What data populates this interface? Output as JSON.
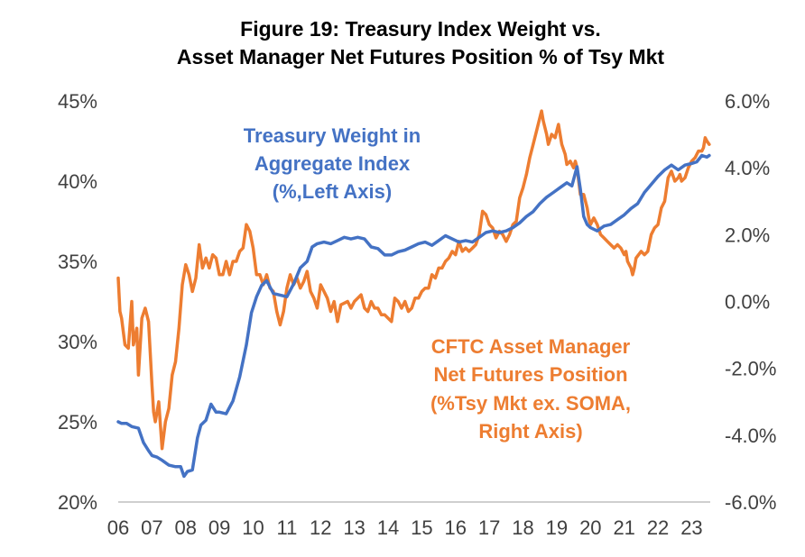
{
  "colors": {
    "treasury": "#4472C4",
    "cftc": "#ED7D31",
    "axis": "#BFBFBF",
    "tick_text": "#404040"
  },
  "chart_data": {
    "type": "line",
    "title": [
      "Figure 19: Treasury Index Weight vs.",
      "Asset Manager Net Futures Position % of Tsy Mkt"
    ],
    "x_range": [
      2006,
      2023.55
    ],
    "x_ticks": [
      "06",
      "07",
      "08",
      "09",
      "10",
      "11",
      "12",
      "13",
      "14",
      "15",
      "16",
      "17",
      "18",
      "19",
      "20",
      "21",
      "22",
      "23"
    ],
    "y_left": {
      "range": [
        20,
        45
      ],
      "ticks": [
        "20%",
        "25%",
        "30%",
        "35%",
        "40%",
        "45%"
      ]
    },
    "y_right": {
      "range": [
        -6,
        6
      ],
      "ticks": [
        "-6.0%",
        "-4.0%",
        "-2.0%",
        "0.0%",
        "2.0%",
        "4.0%",
        "6.0%"
      ]
    },
    "grid": false,
    "legend": "none",
    "annotations": [
      {
        "series": "treasury",
        "lines": [
          "Treasury Weight in",
          "Aggregate Index",
          "(%,Left Axis)"
        ]
      },
      {
        "series": "cftc",
        "lines": [
          "CFTC Asset Manager",
          "Net Futures Position",
          "(%Tsy Mkt ex. SOMA,",
          "Right Axis)"
        ]
      }
    ],
    "series": [
      {
        "id": "treasury",
        "axis": "left",
        "points": [
          [
            2006.0,
            25.0
          ],
          [
            2006.1,
            24.9
          ],
          [
            2006.25,
            24.9
          ],
          [
            2006.4,
            24.7
          ],
          [
            2006.6,
            24.6
          ],
          [
            2006.75,
            23.7
          ],
          [
            2006.9,
            23.2
          ],
          [
            2007.0,
            22.9
          ],
          [
            2007.15,
            22.8
          ],
          [
            2007.3,
            22.6
          ],
          [
            2007.5,
            22.3
          ],
          [
            2007.7,
            22.2
          ],
          [
            2007.85,
            22.2
          ],
          [
            2007.95,
            21.6
          ],
          [
            2008.05,
            21.9
          ],
          [
            2008.2,
            22.0
          ],
          [
            2008.35,
            24.0
          ],
          [
            2008.45,
            24.8
          ],
          [
            2008.6,
            25.1
          ],
          [
            2008.75,
            26.1
          ],
          [
            2008.9,
            25.6
          ],
          [
            2009.0,
            25.6
          ],
          [
            2009.2,
            25.5
          ],
          [
            2009.4,
            26.3
          ],
          [
            2009.6,
            27.8
          ],
          [
            2009.8,
            29.8
          ],
          [
            2009.95,
            31.8
          ],
          [
            2010.1,
            32.8
          ],
          [
            2010.25,
            33.5
          ],
          [
            2010.4,
            33.8
          ],
          [
            2010.6,
            33.0
          ],
          [
            2010.8,
            32.9
          ],
          [
            2011.0,
            32.8
          ],
          [
            2011.2,
            33.6
          ],
          [
            2011.4,
            34.6
          ],
          [
            2011.6,
            35.0
          ],
          [
            2011.75,
            35.9
          ],
          [
            2011.9,
            36.1
          ],
          [
            2012.1,
            36.2
          ],
          [
            2012.3,
            36.1
          ],
          [
            2012.5,
            36.3
          ],
          [
            2012.7,
            36.5
          ],
          [
            2012.9,
            36.4
          ],
          [
            2013.1,
            36.5
          ],
          [
            2013.3,
            36.4
          ],
          [
            2013.5,
            35.9
          ],
          [
            2013.7,
            35.8
          ],
          [
            2013.9,
            35.4
          ],
          [
            2014.1,
            35.4
          ],
          [
            2014.3,
            35.6
          ],
          [
            2014.5,
            35.7
          ],
          [
            2014.7,
            35.9
          ],
          [
            2014.9,
            36.1
          ],
          [
            2015.1,
            36.2
          ],
          [
            2015.3,
            36.0
          ],
          [
            2015.5,
            36.3
          ],
          [
            2015.7,
            36.6
          ],
          [
            2015.9,
            36.4
          ],
          [
            2016.1,
            36.2
          ],
          [
            2016.3,
            36.3
          ],
          [
            2016.5,
            36.2
          ],
          [
            2016.7,
            36.5
          ],
          [
            2016.9,
            36.8
          ],
          [
            2017.1,
            36.9
          ],
          [
            2017.3,
            36.8
          ],
          [
            2017.5,
            36.9
          ],
          [
            2017.7,
            37.1
          ],
          [
            2017.9,
            37.4
          ],
          [
            2018.1,
            37.8
          ],
          [
            2018.3,
            38.1
          ],
          [
            2018.5,
            38.6
          ],
          [
            2018.7,
            39.0
          ],
          [
            2018.9,
            39.3
          ],
          [
            2019.1,
            39.6
          ],
          [
            2019.3,
            39.9
          ],
          [
            2019.45,
            39.7
          ],
          [
            2019.6,
            40.9
          ],
          [
            2019.7,
            39.5
          ],
          [
            2019.8,
            37.8
          ],
          [
            2019.9,
            37.3
          ],
          [
            2020.0,
            37.1
          ],
          [
            2020.2,
            36.9
          ],
          [
            2020.4,
            37.2
          ],
          [
            2020.6,
            37.3
          ],
          [
            2020.8,
            37.6
          ],
          [
            2021.0,
            37.9
          ],
          [
            2021.2,
            38.3
          ],
          [
            2021.4,
            38.6
          ],
          [
            2021.6,
            39.3
          ],
          [
            2021.8,
            39.8
          ],
          [
            2022.0,
            40.3
          ],
          [
            2022.2,
            40.7
          ],
          [
            2022.4,
            41.0
          ],
          [
            2022.6,
            40.7
          ],
          [
            2022.8,
            41.0
          ],
          [
            2023.0,
            41.1
          ],
          [
            2023.15,
            41.2
          ],
          [
            2023.3,
            41.6
          ],
          [
            2023.45,
            41.5
          ],
          [
            2023.52,
            41.6
          ]
        ]
      },
      {
        "id": "cftc",
        "axis": "right",
        "points": [
          [
            2006.0,
            0.7
          ],
          [
            2006.05,
            -0.3
          ],
          [
            2006.1,
            -0.5
          ],
          [
            2006.2,
            -1.3
          ],
          [
            2006.3,
            -1.4
          ],
          [
            2006.4,
            0.0
          ],
          [
            2006.45,
            -1.3
          ],
          [
            2006.55,
            -0.8
          ],
          [
            2006.6,
            -2.2
          ],
          [
            2006.7,
            -0.5
          ],
          [
            2006.8,
            -0.2
          ],
          [
            2006.9,
            -0.6
          ],
          [
            2007.0,
            -2.5
          ],
          [
            2007.05,
            -3.3
          ],
          [
            2007.1,
            -3.6
          ],
          [
            2007.2,
            -3.0
          ],
          [
            2007.3,
            -4.4
          ],
          [
            2007.4,
            -3.6
          ],
          [
            2007.5,
            -3.2
          ],
          [
            2007.6,
            -2.2
          ],
          [
            2007.7,
            -1.8
          ],
          [
            2007.8,
            -0.8
          ],
          [
            2007.9,
            0.5
          ],
          [
            2008.0,
            1.1
          ],
          [
            2008.1,
            0.8
          ],
          [
            2008.2,
            0.3
          ],
          [
            2008.3,
            0.7
          ],
          [
            2008.4,
            1.7
          ],
          [
            2008.5,
            1.0
          ],
          [
            2008.6,
            1.3
          ],
          [
            2008.7,
            1.0
          ],
          [
            2008.8,
            1.4
          ],
          [
            2008.9,
            1.3
          ],
          [
            2009.0,
            0.8
          ],
          [
            2009.1,
            0.8
          ],
          [
            2009.2,
            1.2
          ],
          [
            2009.3,
            0.8
          ],
          [
            2009.4,
            1.2
          ],
          [
            2009.5,
            1.2
          ],
          [
            2009.6,
            1.5
          ],
          [
            2009.7,
            1.6
          ],
          [
            2009.8,
            2.3
          ],
          [
            2009.9,
            2.1
          ],
          [
            2010.0,
            1.6
          ],
          [
            2010.1,
            0.8
          ],
          [
            2010.2,
            0.8
          ],
          [
            2010.3,
            0.5
          ],
          [
            2010.4,
            0.8
          ],
          [
            2010.5,
            0.4
          ],
          [
            2010.6,
            0.3
          ],
          [
            2010.7,
            -0.3
          ],
          [
            2010.8,
            -0.7
          ],
          [
            2010.9,
            -0.3
          ],
          [
            2011.0,
            0.4
          ],
          [
            2011.1,
            0.8
          ],
          [
            2011.2,
            0.5
          ],
          [
            2011.3,
            0.7
          ],
          [
            2011.4,
            0.4
          ],
          [
            2011.5,
            0.6
          ],
          [
            2011.6,
            0.9
          ],
          [
            2011.7,
            0.3
          ],
          [
            2011.8,
            0.1
          ],
          [
            2011.9,
            -0.2
          ],
          [
            2012.0,
            0.5
          ],
          [
            2012.1,
            0.3
          ],
          [
            2012.2,
            0.1
          ],
          [
            2012.3,
            -0.3
          ],
          [
            2012.4,
            0.0
          ],
          [
            2012.5,
            -0.6
          ],
          [
            2012.6,
            -0.1
          ],
          [
            2012.8,
            0.0
          ],
          [
            2012.9,
            -0.2
          ],
          [
            2013.0,
            0.0
          ],
          [
            2013.1,
            0.1
          ],
          [
            2013.2,
            0.2
          ],
          [
            2013.3,
            -0.2
          ],
          [
            2013.4,
            -0.3
          ],
          [
            2013.5,
            0.0
          ],
          [
            2013.6,
            -0.2
          ],
          [
            2013.7,
            -0.2
          ],
          [
            2013.8,
            -0.4
          ],
          [
            2013.9,
            -0.4
          ],
          [
            2014.0,
            -0.5
          ],
          [
            2014.1,
            -0.6
          ],
          [
            2014.2,
            0.1
          ],
          [
            2014.3,
            0.0
          ],
          [
            2014.4,
            -0.2
          ],
          [
            2014.5,
            0.0
          ],
          [
            2014.6,
            -0.3
          ],
          [
            2014.7,
            -0.2
          ],
          [
            2014.8,
            0.1
          ],
          [
            2014.9,
            0.1
          ],
          [
            2015.0,
            0.3
          ],
          [
            2015.1,
            0.4
          ],
          [
            2015.2,
            0.4
          ],
          [
            2015.3,
            0.8
          ],
          [
            2015.4,
            0.7
          ],
          [
            2015.5,
            1.0
          ],
          [
            2015.6,
            1.0
          ],
          [
            2015.7,
            1.2
          ],
          [
            2015.8,
            1.3
          ],
          [
            2015.9,
            1.5
          ],
          [
            2016.0,
            1.4
          ],
          [
            2016.1,
            1.8
          ],
          [
            2016.2,
            1.5
          ],
          [
            2016.3,
            1.6
          ],
          [
            2016.4,
            1.5
          ],
          [
            2016.5,
            1.6
          ],
          [
            2016.6,
            1.7
          ],
          [
            2016.7,
            2.0
          ],
          [
            2016.8,
            2.7
          ],
          [
            2016.9,
            2.6
          ],
          [
            2017.0,
            2.3
          ],
          [
            2017.1,
            2.2
          ],
          [
            2017.2,
            1.9
          ],
          [
            2017.3,
            2.1
          ],
          [
            2017.4,
            2.0
          ],
          [
            2017.5,
            1.8
          ],
          [
            2017.6,
            2.0
          ],
          [
            2017.7,
            2.3
          ],
          [
            2017.8,
            2.4
          ],
          [
            2017.9,
            3.1
          ],
          [
            2018.0,
            3.4
          ],
          [
            2018.05,
            3.6
          ],
          [
            2018.1,
            3.8
          ],
          [
            2018.2,
            4.3
          ],
          [
            2018.3,
            4.7
          ],
          [
            2018.4,
            5.1
          ],
          [
            2018.5,
            5.5
          ],
          [
            2018.55,
            5.7
          ],
          [
            2018.6,
            5.4
          ],
          [
            2018.7,
            5.0
          ],
          [
            2018.75,
            4.7
          ],
          [
            2018.85,
            5.0
          ],
          [
            2018.95,
            4.9
          ],
          [
            2019.0,
            5.1
          ],
          [
            2019.05,
            5.3
          ],
          [
            2019.15,
            4.7
          ],
          [
            2019.25,
            4.4
          ],
          [
            2019.3,
            4.1
          ],
          [
            2019.4,
            4.2
          ],
          [
            2019.5,
            4.0
          ],
          [
            2019.55,
            4.2
          ],
          [
            2019.6,
            4.0
          ],
          [
            2019.7,
            3.2
          ],
          [
            2019.8,
            3.2
          ],
          [
            2019.9,
            2.8
          ],
          [
            2019.95,
            2.5
          ],
          [
            2020.0,
            2.3
          ],
          [
            2020.1,
            2.5
          ],
          [
            2020.2,
            2.3
          ],
          [
            2020.3,
            2.0
          ],
          [
            2020.4,
            1.9
          ],
          [
            2020.5,
            1.8
          ],
          [
            2020.6,
            1.7
          ],
          [
            2020.7,
            1.6
          ],
          [
            2020.8,
            1.7
          ],
          [
            2020.9,
            1.6
          ],
          [
            2021.0,
            1.4
          ],
          [
            2021.05,
            1.5
          ],
          [
            2021.1,
            1.2
          ],
          [
            2021.2,
            1.0
          ],
          [
            2021.25,
            0.8
          ],
          [
            2021.3,
            1.0
          ],
          [
            2021.35,
            1.3
          ],
          [
            2021.5,
            1.5
          ],
          [
            2021.6,
            1.4
          ],
          [
            2021.7,
            1.5
          ],
          [
            2021.8,
            2.0
          ],
          [
            2021.9,
            2.2
          ],
          [
            2022.0,
            2.3
          ],
          [
            2022.1,
            2.8
          ],
          [
            2022.2,
            3.0
          ],
          [
            2022.3,
            3.7
          ],
          [
            2022.4,
            3.9
          ],
          [
            2022.5,
            3.6
          ],
          [
            2022.6,
            3.7
          ],
          [
            2022.65,
            3.8
          ],
          [
            2022.7,
            3.6
          ],
          [
            2022.8,
            3.7
          ],
          [
            2022.9,
            4.0
          ],
          [
            2023.0,
            4.2
          ],
          [
            2023.1,
            4.3
          ],
          [
            2023.2,
            4.5
          ],
          [
            2023.3,
            4.5
          ],
          [
            2023.35,
            4.6
          ],
          [
            2023.4,
            4.9
          ],
          [
            2023.45,
            4.8
          ],
          [
            2023.52,
            4.7
          ]
        ]
      }
    ]
  }
}
